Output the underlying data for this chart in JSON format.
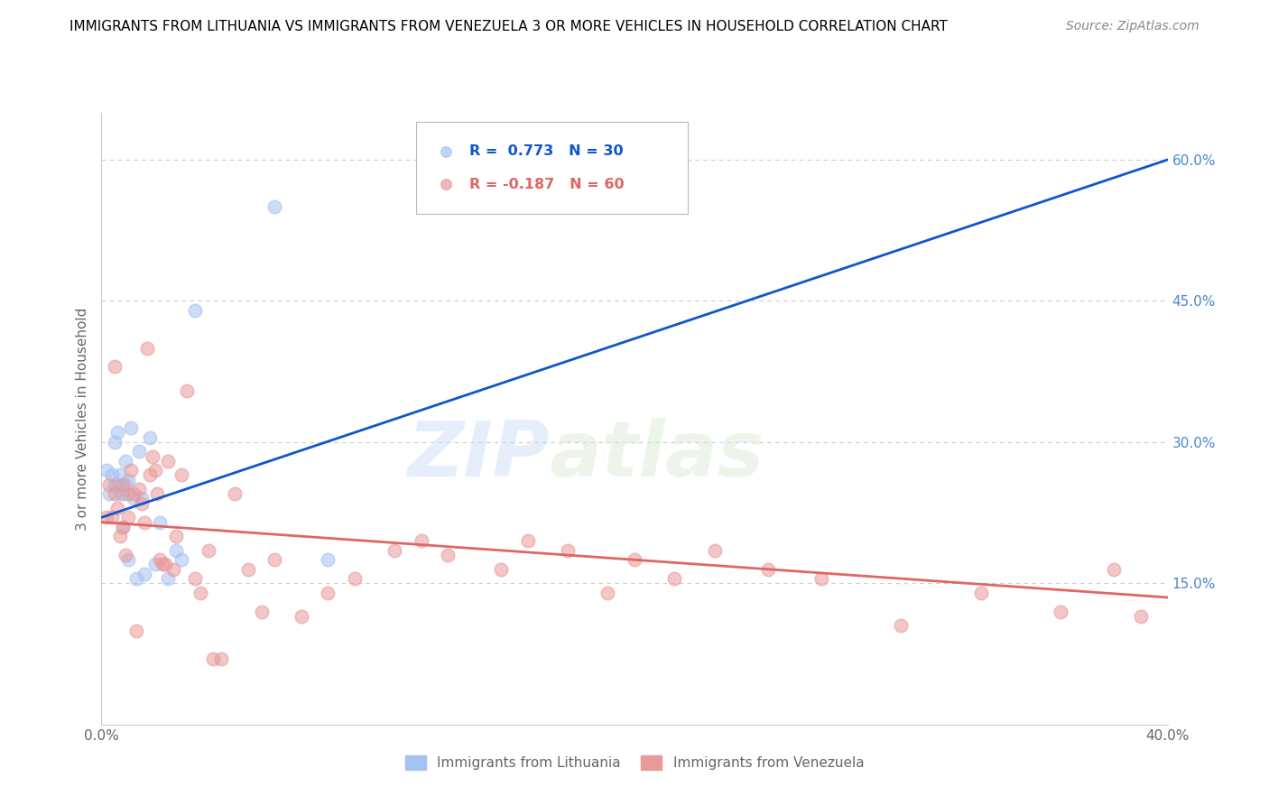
{
  "title": "IMMIGRANTS FROM LITHUANIA VS IMMIGRANTS FROM VENEZUELA 3 OR MORE VEHICLES IN HOUSEHOLD CORRELATION CHART",
  "source": "Source: ZipAtlas.com",
  "ylabel": "3 or more Vehicles in Household",
  "xmin": 0.0,
  "xmax": 0.4,
  "ymin": 0.0,
  "ymax": 0.65,
  "yticks": [
    0.0,
    0.15,
    0.3,
    0.45,
    0.6
  ],
  "ytick_labels": [
    "",
    "15.0%",
    "30.0%",
    "45.0%",
    "60.0%"
  ],
  "xticks": [
    0.0,
    0.1,
    0.2,
    0.3,
    0.4
  ],
  "xtick_labels": [
    "0.0%",
    "",
    "",
    "",
    "40.0%"
  ],
  "legend_label_blue": "Immigrants from Lithuania",
  "legend_label_pink": "Immigrants from Venezuela",
  "blue_color": "#a4c2f4",
  "pink_color": "#ea9999",
  "blue_line_color": "#1155cc",
  "pink_line_color": "#e06666",
  "blue_r": 0.773,
  "blue_n": 30,
  "pink_r": -0.187,
  "pink_n": 60,
  "watermark_zip": "ZIP",
  "watermark_atlas": "atlas",
  "background_color": "#ffffff",
  "title_color": "#000000",
  "right_axis_color": "#4a86c8",
  "grid_color": "#cccccc",
  "blue_scatter_x": [
    0.002,
    0.003,
    0.004,
    0.005,
    0.005,
    0.006,
    0.006,
    0.007,
    0.007,
    0.008,
    0.008,
    0.009,
    0.009,
    0.01,
    0.01,
    0.011,
    0.012,
    0.013,
    0.014,
    0.015,
    0.016,
    0.018,
    0.02,
    0.022,
    0.025,
    0.028,
    0.03,
    0.035,
    0.065,
    0.085
  ],
  "blue_scatter_y": [
    0.27,
    0.245,
    0.265,
    0.255,
    0.3,
    0.255,
    0.31,
    0.245,
    0.265,
    0.21,
    0.245,
    0.255,
    0.28,
    0.175,
    0.26,
    0.315,
    0.24,
    0.155,
    0.29,
    0.24,
    0.16,
    0.305,
    0.17,
    0.215,
    0.155,
    0.185,
    0.175,
    0.44,
    0.55,
    0.175
  ],
  "pink_scatter_x": [
    0.002,
    0.003,
    0.004,
    0.005,
    0.005,
    0.006,
    0.007,
    0.008,
    0.008,
    0.009,
    0.01,
    0.01,
    0.011,
    0.012,
    0.013,
    0.014,
    0.015,
    0.016,
    0.017,
    0.018,
    0.019,
    0.02,
    0.021,
    0.022,
    0.023,
    0.024,
    0.025,
    0.027,
    0.028,
    0.03,
    0.032,
    0.035,
    0.037,
    0.04,
    0.042,
    0.045,
    0.05,
    0.055,
    0.06,
    0.065,
    0.075,
    0.085,
    0.095,
    0.11,
    0.12,
    0.13,
    0.15,
    0.16,
    0.175,
    0.19,
    0.2,
    0.215,
    0.23,
    0.25,
    0.27,
    0.3,
    0.33,
    0.36,
    0.38,
    0.39
  ],
  "pink_scatter_y": [
    0.22,
    0.255,
    0.22,
    0.245,
    0.38,
    0.23,
    0.2,
    0.255,
    0.21,
    0.18,
    0.22,
    0.245,
    0.27,
    0.245,
    0.1,
    0.25,
    0.235,
    0.215,
    0.4,
    0.265,
    0.285,
    0.27,
    0.245,
    0.175,
    0.17,
    0.17,
    0.28,
    0.165,
    0.2,
    0.265,
    0.355,
    0.155,
    0.14,
    0.185,
    0.07,
    0.07,
    0.245,
    0.165,
    0.12,
    0.175,
    0.115,
    0.14,
    0.155,
    0.185,
    0.195,
    0.18,
    0.165,
    0.195,
    0.185,
    0.14,
    0.175,
    0.155,
    0.185,
    0.165,
    0.155,
    0.105,
    0.14,
    0.12,
    0.165,
    0.115
  ]
}
